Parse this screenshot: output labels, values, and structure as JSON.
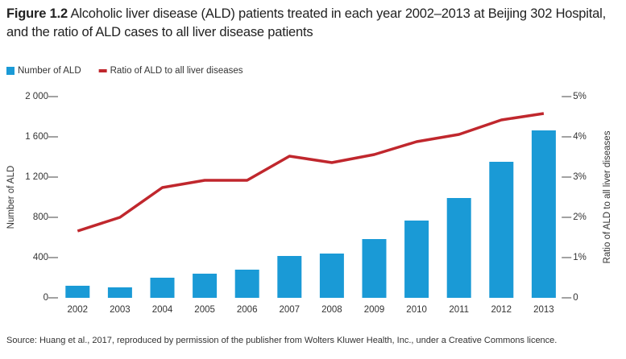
{
  "chart_data": {
    "type": "bar",
    "figure_label": "Figure 1.2",
    "title": "Alcoholic liver disease (ALD) patients treated in each year 2002–2013 at Beijing 302 Hospital, and the ratio of ALD cases to all liver disease patients",
    "categories": [
      "2002",
      "2003",
      "2004",
      "2005",
      "2006",
      "2007",
      "2008",
      "2009",
      "2010",
      "2011",
      "2012",
      "2013"
    ],
    "series": [
      {
        "name": "Number of ALD",
        "type": "bar",
        "color": "#1a9ad6",
        "values": [
          120,
          104,
          200,
          240,
          280,
          416,
          440,
          584,
          768,
          992,
          1352,
          1664
        ]
      },
      {
        "name": "Ratio of ALD to all liver diseases",
        "type": "line",
        "axis": "y2",
        "color": "#c0272d",
        "values": [
          1.66,
          2.0,
          2.74,
          2.92,
          2.92,
          3.52,
          3.36,
          3.56,
          3.88,
          4.06,
          4.42,
          4.58
        ]
      }
    ],
    "ylabel": "Number of ALD",
    "y2label": "Ratio of ALD to all liver diseases",
    "ylim": [
      0,
      2000
    ],
    "yticks": [
      0,
      400,
      800,
      {
        "value": 1200,
        "label": "1 200"
      },
      {
        "value": 1600,
        "label": "1 600"
      },
      {
        "value": 2000,
        "label": "2 000"
      }
    ],
    "y2lim": [
      0,
      5
    ],
    "y2ticks": [
      0,
      {
        "value": 1,
        "label": "1%"
      },
      {
        "value": 2,
        "label": "2%"
      },
      {
        "value": 3,
        "label": "3%"
      },
      {
        "value": 4,
        "label": "4%"
      },
      {
        "value": 5,
        "label": "5%"
      }
    ],
    "legend": "top-left",
    "source": "Source: Huang et al., 2017, reproduced by permission of the publisher from Wolters Kluwer Health, Inc., under a Creative Commons licence."
  }
}
